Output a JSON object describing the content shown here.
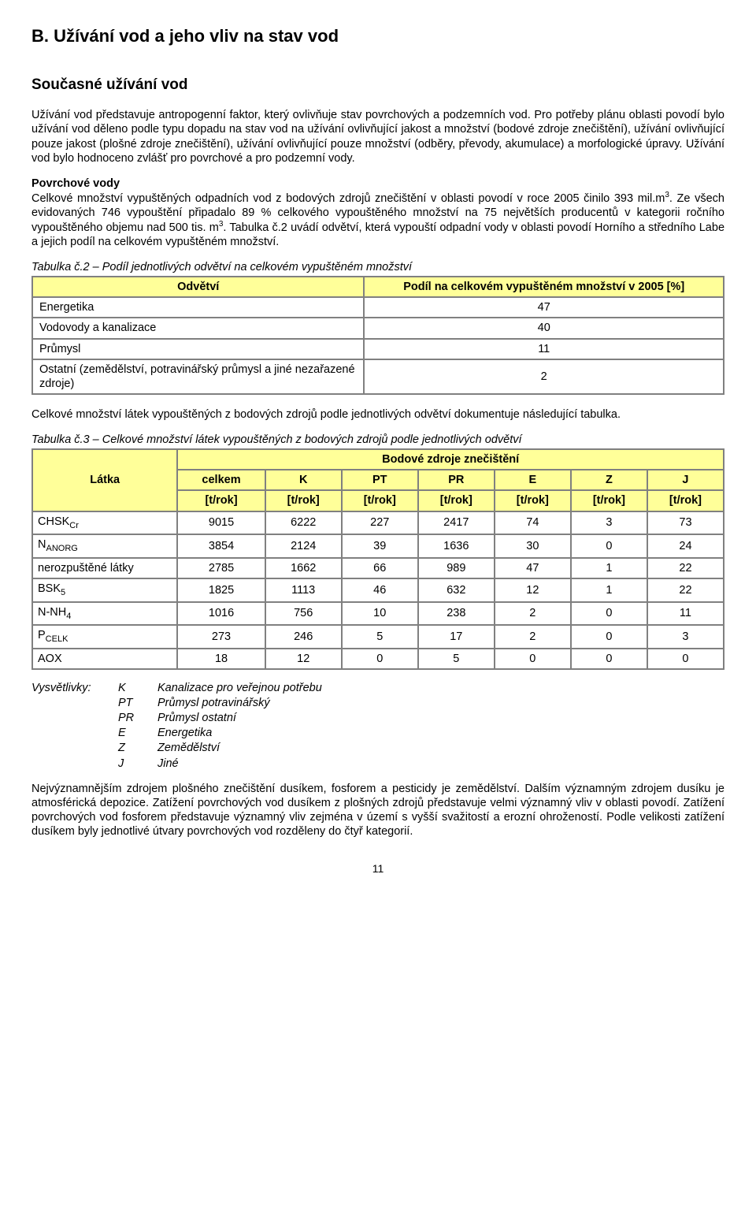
{
  "colors": {
    "header_bg": "#ffff99",
    "border": "#808080",
    "text": "#000000",
    "page_bg": "#ffffff"
  },
  "h1": "B. Užívání vod a jeho vliv na stav vod",
  "h2": "Současné užívání vod",
  "p1": "Užívání vod představuje antropogenní faktor, který ovlivňuje stav povrchových a podzemních vod. Pro potřeby plánu oblasti povodí bylo užívání vod děleno podle typu dopadu na stav vod na užívání ovlivňující jakost a množství (bodové zdroje znečištění), užívání ovlivňující pouze jakost (plošné zdroje znečištění), užívání ovlivňující pouze množství (odběry, převody, akumulace) a morfologické úpravy. Užívání vod bylo hodnoceno zvlášť pro povrchové a pro podzemní vody.",
  "povrchove_title": "Povrchové vody",
  "p2a": "Celkové množství vypuštěných odpadních vod z bodových zdrojů znečištění v oblasti povodí v roce 2005 činilo 393 mil.m",
  "p2sup": "3",
  "p2b": ". Ze všech evidovaných 746 vypouštění připadalo 89 % celkového vypouštěného množství na 75 největších producentů v kategorii ročního vypouštěného objemu nad 500 tis. m",
  "p2sup2": "3",
  "p2c": ". Tabulka č.2 uvádí odvětví, která vypouští odpadní vody v oblasti povodí Horního a středního Labe a jejich podíl na celkovém vypuštěném množství.",
  "table1": {
    "caption": "Tabulka č.2 – Podíl jednotlivých odvětví na celkovém vypuštěném množství",
    "col1": "Odvětví",
    "col2": "Podíl na celkovém vypuštěném množství v 2005 [%]",
    "rows": [
      {
        "label": "Energetika",
        "val": "47"
      },
      {
        "label": "Vodovody a kanalizace",
        "val": "40"
      },
      {
        "label": "Průmysl",
        "val": "11"
      },
      {
        "label": "Ostatní (zemědělství, potravinářský průmysl a jiné nezařazené zdroje)",
        "val": "2"
      }
    ]
  },
  "p3": "Celkové množství látek vypouštěných z bodových zdrojů podle jednotlivých odvětví dokumentuje následující tabulka.",
  "table2": {
    "caption": "Tabulka č.3 – Celkové množství látek vypouštěných z bodových zdrojů podle jednotlivých odvětví",
    "grouphdr": "Bodové zdroje znečištění",
    "colLabel": "Látka",
    "cols": [
      "celkem",
      "K",
      "PT",
      "PR",
      "E",
      "Z",
      "J"
    ],
    "unit": "[t/rok]",
    "rows": [
      {
        "label": "CHSK",
        "sub": "Cr",
        "vals": [
          "9015",
          "6222",
          "227",
          "2417",
          "74",
          "3",
          "73"
        ]
      },
      {
        "label": "N",
        "sub": "ANORG",
        "vals": [
          "3854",
          "2124",
          "39",
          "1636",
          "30",
          "0",
          "24"
        ]
      },
      {
        "label": "nerozpuštěné látky",
        "sub": "",
        "vals": [
          "2785",
          "1662",
          "66",
          "989",
          "47",
          "1",
          "22"
        ]
      },
      {
        "label": "BSK",
        "sub": "5",
        "vals": [
          "1825",
          "1113",
          "46",
          "632",
          "12",
          "1",
          "22"
        ]
      },
      {
        "label": "N-NH",
        "sub": "4",
        "vals": [
          "1016",
          "756",
          "10",
          "238",
          "2",
          "0",
          "11"
        ]
      },
      {
        "label": "P",
        "sub": "CELK",
        "vals": [
          "273",
          "246",
          "5",
          "17",
          "2",
          "0",
          "3"
        ]
      },
      {
        "label": "AOX",
        "sub": "",
        "vals": [
          "18",
          "12",
          "0",
          "5",
          "0",
          "0",
          "0"
        ]
      }
    ]
  },
  "legend": {
    "title": "Vysvětlivky:",
    "items": [
      {
        "k": "K",
        "v": "Kanalizace pro veřejnou potřebu"
      },
      {
        "k": "PT",
        "v": "Průmysl potravinářský"
      },
      {
        "k": "PR",
        "v": "Průmysl ostatní"
      },
      {
        "k": "E",
        "v": "Energetika"
      },
      {
        "k": "Z",
        "v": "Zemědělství"
      },
      {
        "k": "J",
        "v": "Jiné"
      }
    ]
  },
  "p4": "Nejvýznamnějším zdrojem plošného znečištění dusíkem, fosforem a pesticidy je zemědělství. Dalším významným zdrojem dusíku je atmosférická depozice. Zatížení povrchových vod dusíkem z plošných zdrojů představuje velmi významný vliv v oblasti povodí. Zatížení povrchových vod fosforem představuje významný vliv zejména v území s vyšší svažitostí a erozní ohrožeností. Podle velikosti zatížení dusíkem byly jednotlivé útvary povrchových vod rozděleny do čtyř kategorií.",
  "pageNum": "11"
}
